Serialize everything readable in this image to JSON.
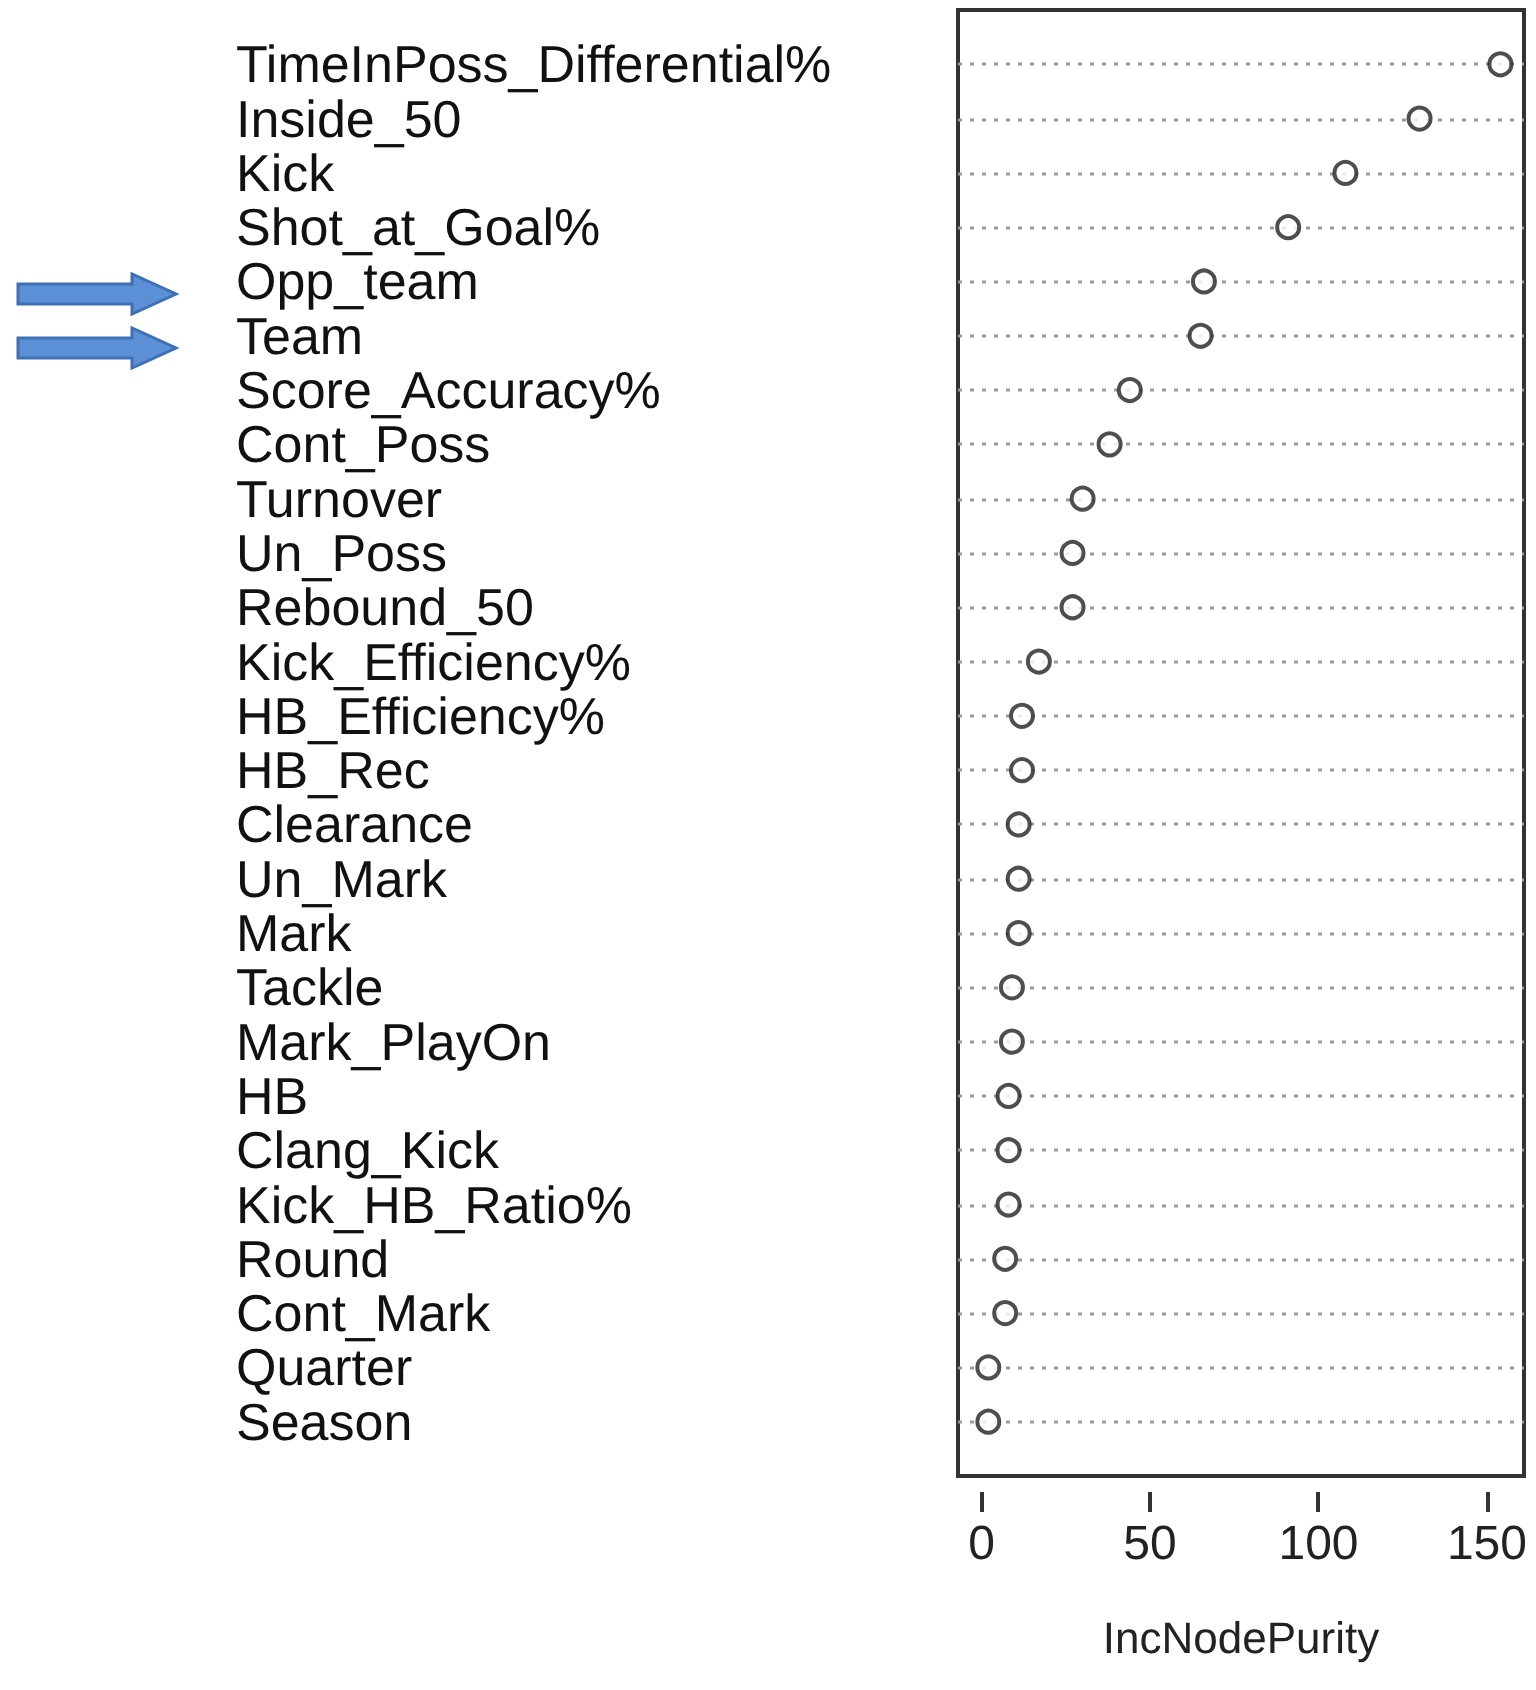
{
  "chart_data": {
    "type": "scatter",
    "xlabel": "IncNodePurity",
    "categories": [
      "TimeInPoss_Differential%",
      "Inside_50",
      "Kick",
      "Shot_at_Goal%",
      "Opp_team",
      "Team",
      "Score_Accuracy%",
      "Cont_Poss",
      "Turnover",
      "Un_Poss",
      "Rebound_50",
      "Kick_Efficiency%",
      "HB_Efficiency%",
      "HB_Rec",
      "Clearance",
      "Un_Mark",
      "Mark",
      "Tackle",
      "Mark_PlayOn",
      "HB",
      "Clang_Kick",
      "Kick_HB_Ratio%",
      "Round",
      "Cont_Mark",
      "Quarter",
      "Season"
    ],
    "values": [
      154,
      130,
      108,
      91,
      66,
      65,
      44,
      38,
      30,
      27,
      27,
      17,
      12,
      12,
      11,
      11,
      11,
      9,
      9,
      8,
      8,
      8,
      7,
      7,
      2,
      2
    ],
    "color": "#222222",
    "marker": "circle",
    "orientation": "horizontal",
    "xlim": [
      -7,
      161
    ],
    "xticks": [
      0,
      50,
      100,
      150
    ],
    "grid": "y"
  }
}
